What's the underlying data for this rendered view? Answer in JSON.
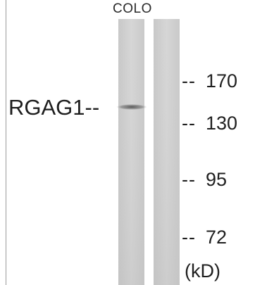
{
  "sample_label": "COLO",
  "protein": {
    "label": "RGAG1--"
  },
  "markers": [
    {
      "dash": "--",
      "value": "170"
    },
    {
      "dash": "--",
      "value": "130"
    },
    {
      "dash": "--",
      "value": "95"
    },
    {
      "dash": "--",
      "value": "72"
    }
  ],
  "unit_label": "(kD)",
  "colors": {
    "lane": "#cfcfcf",
    "band": "#5e5e5e",
    "text": "#1f1f1f"
  }
}
